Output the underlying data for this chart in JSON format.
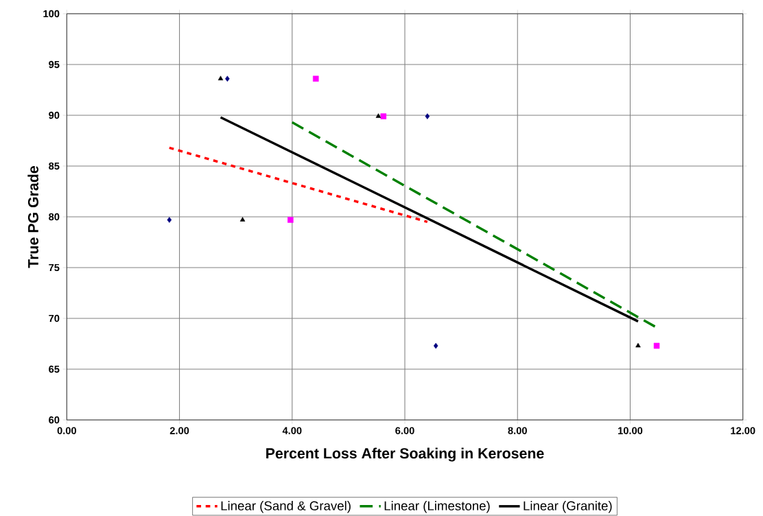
{
  "chart_data": {
    "type": "scatter",
    "xlabel": "Percent Loss After Soaking in Kerosene",
    "ylabel": "True PG Grade",
    "xlim": [
      0,
      12
    ],
    "ylim": [
      60,
      100
    ],
    "xticks": [
      {
        "value": 0,
        "label": "0.00"
      },
      {
        "value": 2,
        "label": "2.00"
      },
      {
        "value": 4,
        "label": "4.00"
      },
      {
        "value": 6,
        "label": "6.00"
      },
      {
        "value": 8,
        "label": "8.00"
      },
      {
        "value": 10,
        "label": "10.00"
      },
      {
        "value": 12,
        "label": "12.00"
      }
    ],
    "yticks": [
      60,
      65,
      70,
      75,
      80,
      85,
      90,
      95,
      100
    ],
    "grid": true,
    "legend": "bottom",
    "series": [
      {
        "marker": "diamond",
        "color": "#000080",
        "x": [
          1.82,
          2.85,
          6.4,
          6.55
        ],
        "values": [
          79.7,
          93.6,
          89.9,
          67.3
        ]
      },
      {
        "marker": "square",
        "color": "#ff00ff",
        "x": [
          3.97,
          4.42,
          5.62,
          10.47
        ],
        "values": [
          79.7,
          93.6,
          89.9,
          67.3
        ]
      },
      {
        "marker": "triangle",
        "color": "#000000",
        "x": [
          2.73,
          3.12,
          5.53,
          10.14
        ],
        "values": [
          93.6,
          79.7,
          89.9,
          67.3
        ]
      },
      {
        "type": "line",
        "name": "Linear (Sand & Gravel)",
        "color": "#ff0000",
        "line_style": "dotted",
        "x": [
          1.82,
          6.4
        ],
        "values": [
          86.8,
          79.5
        ]
      },
      {
        "type": "line",
        "name": "Linear (Limestone)",
        "color": "#008000",
        "line_style": "dashed",
        "x": [
          4.0,
          10.47
        ],
        "values": [
          89.3,
          69.1
        ]
      },
      {
        "type": "line",
        "name": "Linear (Granite)",
        "color": "#000000",
        "line_style": "solid",
        "x": [
          2.73,
          10.14
        ],
        "values": [
          89.8,
          69.7
        ]
      }
    ]
  }
}
